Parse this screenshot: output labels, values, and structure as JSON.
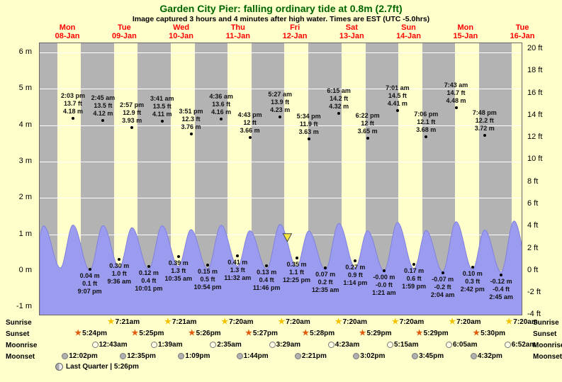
{
  "header": {
    "title": "Garden City Pier: falling ordinary tide at 0.8m (2.7ft)",
    "subtitle": "Image captured 3 hours and 4 minutes after high water. Times are EST (UTC -5.0hrs)"
  },
  "chart_data": {
    "type": "area",
    "span_hours": 204,
    "ylim_m": [
      -1.25,
      6.25
    ],
    "wave_display_scale": 0.3,
    "left_axis_unit": "m",
    "right_axis_unit": "ft",
    "left_axis_ticks_m": [
      6,
      5,
      4,
      3,
      2,
      1,
      0,
      -1
    ],
    "right_axis_ticks_ft": [
      20,
      18,
      16,
      14,
      12,
      10,
      8,
      6,
      4,
      2,
      0,
      -2,
      -4
    ],
    "day_labels": [
      {
        "day": "Mon",
        "date": "08-Jan",
        "noon_h": 12
      },
      {
        "day": "Tue",
        "date": "09-Jan",
        "noon_h": 36
      },
      {
        "day": "Wed",
        "date": "10-Jan",
        "noon_h": 60
      },
      {
        "day": "Thu",
        "date": "11-Jan",
        "noon_h": 84
      },
      {
        "day": "Fri",
        "date": "12-Jan",
        "noon_h": 108
      },
      {
        "day": "Sat",
        "date": "13-Jan",
        "noon_h": 132
      },
      {
        "day": "Sun",
        "date": "14-Jan",
        "noon_h": 156
      },
      {
        "day": "Mon",
        "date": "15-Jan",
        "noon_h": 180
      },
      {
        "day": "Tue",
        "date": "16-Jan",
        "noon_h": 204
      }
    ],
    "night_bands_h": [
      [
        0,
        7.35
      ],
      [
        17.4,
        31.35
      ],
      [
        41.42,
        55.35
      ],
      [
        65.43,
        79.33
      ],
      [
        89.45,
        103.33
      ],
      [
        113.47,
        127.33
      ],
      [
        137.48,
        151.33
      ],
      [
        161.48,
        175.33
      ],
      [
        185.5,
        199.33
      ]
    ],
    "tide_events": [
      {
        "type": "high",
        "t_h": 14.05,
        "height_m": 4.18,
        "labels": [
          "2:03 pm",
          "13.7 ft",
          "4.18 m"
        ]
      },
      {
        "type": "low",
        "t_h": 21.12,
        "height_m": 0.04,
        "labels": [
          "0.04 m",
          "0.1 ft",
          "9:07 pm"
        ]
      },
      {
        "type": "high",
        "t_h": 26.75,
        "height_m": 4.12,
        "labels": [
          "2:45 am",
          "13.5 ft",
          "4.12 m"
        ]
      },
      {
        "type": "low",
        "t_h": 33.6,
        "height_m": 0.3,
        "labels": [
          "0.30 m",
          "1.0 ft",
          "9:36 am"
        ]
      },
      {
        "type": "high",
        "t_h": 38.95,
        "height_m": 3.93,
        "labels": [
          "2:57 pm",
          "12.9 ft",
          "3.93 m"
        ]
      },
      {
        "type": "low",
        "t_h": 46.02,
        "height_m": 0.12,
        "labels": [
          "0.12 m",
          "0.4 ft",
          "10:01 pm"
        ]
      },
      {
        "type": "high",
        "t_h": 51.68,
        "height_m": 4.11,
        "labels": [
          "3:41 am",
          "13.5 ft",
          "4.11 m"
        ]
      },
      {
        "type": "low",
        "t_h": 58.58,
        "height_m": 0.39,
        "labels": [
          "0.39 m",
          "1.3 ft",
          "10:35 am"
        ]
      },
      {
        "type": "high",
        "t_h": 63.85,
        "height_m": 3.76,
        "labels": [
          "3:51 pm",
          "12.3 ft",
          "3.76 m"
        ]
      },
      {
        "type": "low",
        "t_h": 70.9,
        "height_m": 0.15,
        "labels": [
          "0.15 m",
          "0.5 ft",
          "10:54 pm"
        ]
      },
      {
        "type": "high",
        "t_h": 76.6,
        "height_m": 4.16,
        "labels": [
          "4:36 am",
          "13.6 ft",
          "4.16 m"
        ]
      },
      {
        "type": "low",
        "t_h": 83.53,
        "height_m": 0.41,
        "labels": [
          "0.41 m",
          "1.3 ft",
          "11:32 am"
        ]
      },
      {
        "type": "high",
        "t_h": 88.72,
        "height_m": 3.66,
        "labels": [
          "4:43 pm",
          "12 ft",
          "3.66 m"
        ]
      },
      {
        "type": "low",
        "t_h": 95.77,
        "height_m": 0.13,
        "labels": [
          "0.13 m",
          "0.4 ft",
          "11:46 pm"
        ]
      },
      {
        "type": "high",
        "t_h": 101.45,
        "height_m": 4.23,
        "labels": [
          "5:27 am",
          "13.9 ft",
          "4.23 m"
        ]
      },
      {
        "type": "low",
        "t_h": 108.42,
        "height_m": 0.35,
        "labels": [
          "0.35 m",
          "1.1 ft",
          "12:25 pm"
        ]
      },
      {
        "type": "high",
        "t_h": 113.57,
        "height_m": 3.63,
        "labels": [
          "5:34 pm",
          "11.9 ft",
          "3.63 m"
        ]
      },
      {
        "type": "low",
        "t_h": 120.58,
        "height_m": 0.07,
        "labels": [
          "0.07 m",
          "0.2 ft",
          "12:35 am"
        ]
      },
      {
        "type": "high",
        "t_h": 126.25,
        "height_m": 4.32,
        "labels": [
          "6:15 am",
          "14.2 ft",
          "4.32 m"
        ]
      },
      {
        "type": "low",
        "t_h": 133.23,
        "height_m": 0.27,
        "labels": [
          "0.27 m",
          "0.9 ft",
          "1:14 pm"
        ]
      },
      {
        "type": "high",
        "t_h": 138.37,
        "height_m": 3.65,
        "labels": [
          "6:22 pm",
          "12 ft",
          "3.65 m"
        ]
      },
      {
        "type": "low",
        "t_h": 145.35,
        "height_m": 0.0,
        "labels": [
          "-0.00 m",
          "-0.0 ft",
          "1:21 am"
        ]
      },
      {
        "type": "high",
        "t_h": 151.02,
        "height_m": 4.41,
        "labels": [
          "7:01 am",
          "14.5 ft",
          "4.41 m"
        ]
      },
      {
        "type": "low",
        "t_h": 157.98,
        "height_m": 0.17,
        "labels": [
          "0.17 m",
          "0.6 ft",
          "1:59 pm"
        ]
      },
      {
        "type": "high",
        "t_h": 163.1,
        "height_m": 3.68,
        "labels": [
          "7:06 pm",
          "12.1 ft",
          "3.68 m"
        ]
      },
      {
        "type": "low",
        "t_h": 170.07,
        "height_m": -0.07,
        "labels": [
          "-0.07 m",
          "-0.2 ft",
          "2:04 am"
        ]
      },
      {
        "type": "high",
        "t_h": 175.72,
        "height_m": 4.48,
        "labels": [
          "7:43 am",
          "14.7 ft",
          "4.48 m"
        ]
      },
      {
        "type": "low",
        "t_h": 182.7,
        "height_m": 0.1,
        "labels": [
          "0.10 m",
          "0.3 ft",
          "2:42 pm"
        ]
      },
      {
        "type": "high",
        "t_h": 187.8,
        "height_m": 3.72,
        "labels": [
          "7:48 pm",
          "12.2 ft",
          "3.72 m"
        ]
      },
      {
        "type": "low",
        "t_h": 194.75,
        "height_m": -0.12,
        "labels": [
          "-0.12 m",
          "-0.4 ft",
          "2:45 am"
        ]
      }
    ],
    "wave_extremes": [
      [
        -3.2,
        0.1
      ],
      [
        1.65,
        4.1
      ],
      [
        8.72,
        0.25
      ],
      [
        14.05,
        4.18
      ],
      [
        21.12,
        0.04
      ],
      [
        26.75,
        4.12
      ],
      [
        33.6,
        0.3
      ],
      [
        38.95,
        3.93
      ],
      [
        46.02,
        0.12
      ],
      [
        51.68,
        4.11
      ],
      [
        58.58,
        0.39
      ],
      [
        63.85,
        3.76
      ],
      [
        70.9,
        0.15
      ],
      [
        76.6,
        4.16
      ],
      [
        83.53,
        0.41
      ],
      [
        88.72,
        3.66
      ],
      [
        95.77,
        0.13
      ],
      [
        101.45,
        4.23
      ],
      [
        108.42,
        0.35
      ],
      [
        113.57,
        3.63
      ],
      [
        120.58,
        0.07
      ],
      [
        126.25,
        4.32
      ],
      [
        133.23,
        0.27
      ],
      [
        138.37,
        3.65
      ],
      [
        145.35,
        0.0
      ],
      [
        151.02,
        4.41
      ],
      [
        157.98,
        0.17
      ],
      [
        163.1,
        3.68
      ],
      [
        170.07,
        -0.07
      ],
      [
        175.72,
        4.48
      ],
      [
        182.7,
        0.1
      ],
      [
        187.8,
        3.72
      ],
      [
        194.75,
        -0.12
      ],
      [
        200.2,
        4.55
      ],
      [
        206.8,
        0.1
      ]
    ],
    "current_marker": {
      "t_h": 104.52,
      "display_height_m": 0.8
    },
    "colors": {
      "day_band": "#ffffcc",
      "night_band": "#b3b3b3",
      "wave_fill": "#9b9bef",
      "wave_stroke": "#8080e0",
      "day_label": "#ff0000",
      "title": "#006600",
      "marker_fill": "#f5e642"
    }
  },
  "astro": {
    "rows": [
      {
        "label": "Sunrise",
        "icon": "sunrise-star",
        "color": "#f2c200",
        "entries": [
          {
            "t_h": 31.35,
            "time": "7:21am"
          },
          {
            "t_h": 55.35,
            "time": "7:21am"
          },
          {
            "t_h": 79.33,
            "time": "7:20am"
          },
          {
            "t_h": 103.33,
            "time": "7:20am"
          },
          {
            "t_h": 127.33,
            "time": "7:20am"
          },
          {
            "t_h": 151.33,
            "time": "7:20am"
          },
          {
            "t_h": 175.33,
            "time": "7:20am"
          },
          {
            "t_h": 199.33,
            "time": "7:20am"
          }
        ]
      },
      {
        "label": "Sunset",
        "icon": "sunset-star",
        "color": "#e05c10",
        "entries": [
          {
            "t_h": 17.4,
            "time": "5:24pm"
          },
          {
            "t_h": 41.42,
            "time": "5:25pm"
          },
          {
            "t_h": 65.43,
            "time": "5:26pm"
          },
          {
            "t_h": 89.45,
            "time": "5:27pm"
          },
          {
            "t_h": 113.47,
            "time": "5:28pm"
          },
          {
            "t_h": 137.48,
            "time": "5:29pm"
          },
          {
            "t_h": 161.48,
            "time": "5:29pm"
          },
          {
            "t_h": 185.5,
            "time": "5:30pm"
          }
        ]
      },
      {
        "label": "Moonrise",
        "icon": "moonrise-circle",
        "color": "#ffffe8",
        "entries": [
          {
            "t_h": 24.72,
            "time": "12:43am"
          },
          {
            "t_h": 49.65,
            "time": "1:39am"
          },
          {
            "t_h": 74.58,
            "time": "2:35am"
          },
          {
            "t_h": 99.48,
            "time": "3:29am"
          },
          {
            "t_h": 124.38,
            "time": "4:23am"
          },
          {
            "t_h": 149.25,
            "time": "5:15am"
          },
          {
            "t_h": 174.08,
            "time": "6:05am"
          },
          {
            "t_h": 198.87,
            "time": "6:52am"
          }
        ]
      },
      {
        "label": "Moonset",
        "icon": "moonset-circle",
        "color": "#b0b0b0",
        "entries": [
          {
            "t_h": 12.03,
            "time": "12:02pm"
          },
          {
            "t_h": 36.58,
            "time": "12:35pm"
          },
          {
            "t_h": 61.15,
            "time": "1:09pm"
          },
          {
            "t_h": 85.73,
            "time": "1:44pm"
          },
          {
            "t_h": 110.35,
            "time": "2:21pm"
          },
          {
            "t_h": 135.03,
            "time": "3:02pm"
          },
          {
            "t_h": 159.75,
            "time": "3:45pm"
          },
          {
            "t_h": 184.53,
            "time": "4:32pm"
          }
        ]
      }
    ],
    "moon_phase": "Last Quarter | 5:26pm"
  }
}
